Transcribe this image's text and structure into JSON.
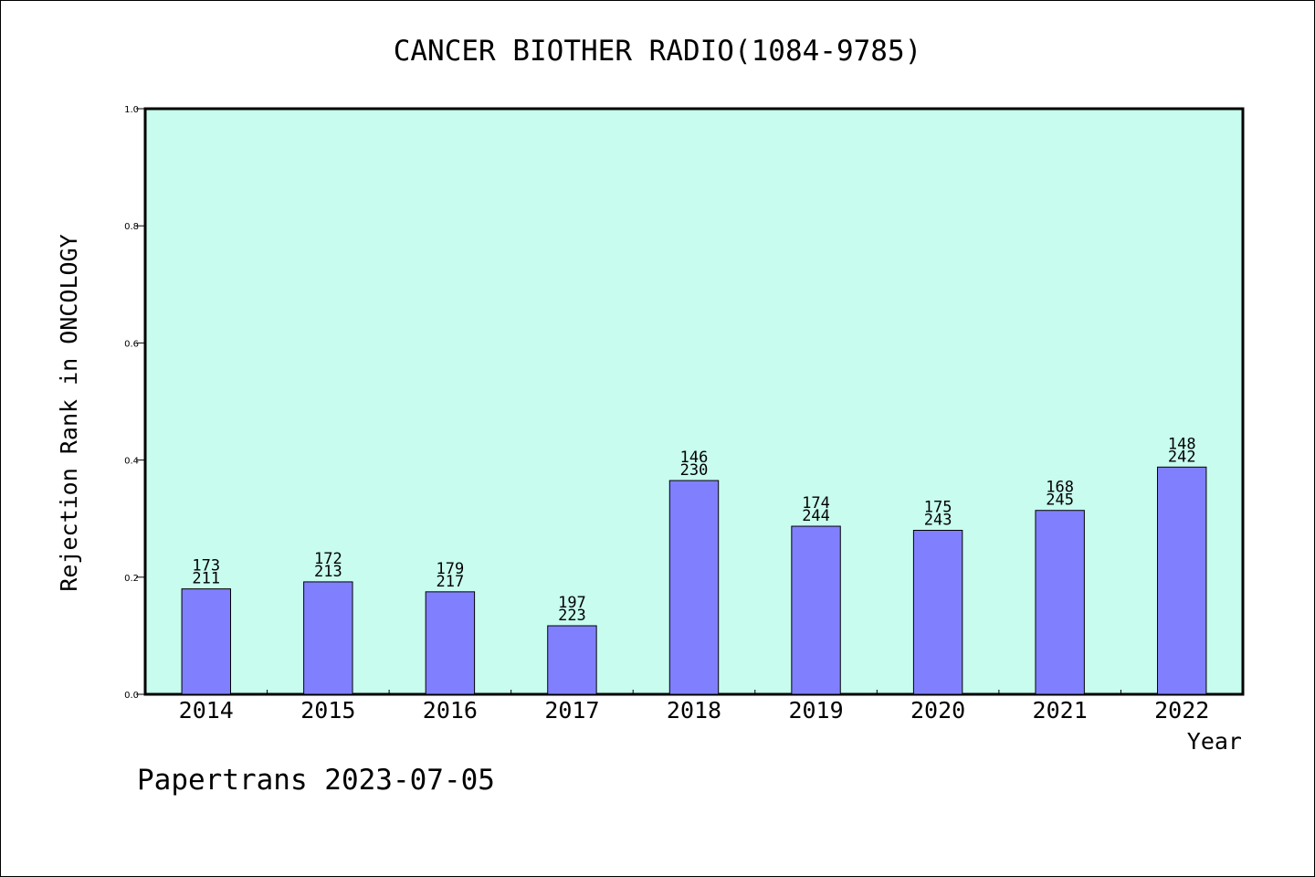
{
  "chart_data": {
    "type": "bar",
    "title": "CANCER BIOTHER RADIO(1084-9785)",
    "xlabel": "Year",
    "ylabel": "Rejection Rank in ONCOLOGY",
    "ylim": [
      0,
      1.0
    ],
    "yticks": [
      "0.0",
      "0.2",
      "0.4",
      "0.6",
      "0.8",
      "1.0"
    ],
    "grid": false,
    "colors": {
      "bar": "#8080ff",
      "plot_bg": "#c8fcee",
      "axis": "#000000"
    },
    "categories": [
      "2014",
      "2015",
      "2016",
      "2017",
      "2018",
      "2019",
      "2020",
      "2021",
      "2022"
    ],
    "values": [
      0.18,
      0.192,
      0.175,
      0.117,
      0.365,
      0.287,
      0.28,
      0.314,
      0.388
    ],
    "labels": [
      {
        "top": "173",
        "bottom": "211"
      },
      {
        "top": "172",
        "bottom": "213"
      },
      {
        "top": "179",
        "bottom": "217"
      },
      {
        "top": "197",
        "bottom": "223"
      },
      {
        "top": "146",
        "bottom": "230"
      },
      {
        "top": "174",
        "bottom": "244"
      },
      {
        "top": "175",
        "bottom": "243"
      },
      {
        "top": "168",
        "bottom": "245"
      },
      {
        "top": "148",
        "bottom": "242"
      }
    ]
  },
  "footer": {
    "credit": "Papertrans 2023-07-05"
  }
}
